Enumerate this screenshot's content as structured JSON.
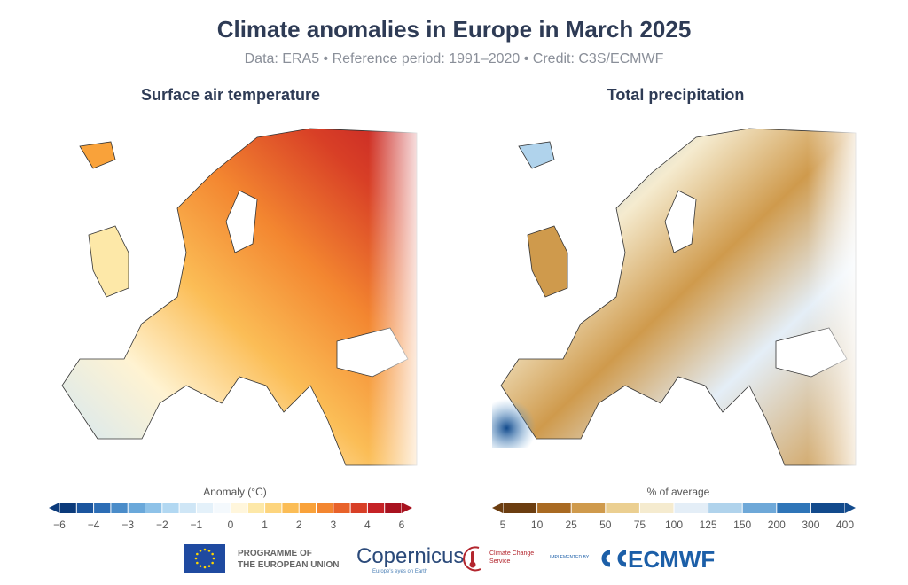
{
  "header": {
    "title": "Climate anomalies in Europe in March 2025",
    "subtitle": "Data: ERA5 • Reference period: 1991–2020 • Credit: C3S/ECMWF"
  },
  "panels": [
    {
      "title": "Surface air temperature",
      "legend_label": "Anomaly (°C)",
      "ticks": [
        "−6",
        "−4",
        "−3",
        "−2",
        "−1",
        "0",
        "1",
        "2",
        "3",
        "4",
        "6"
      ],
      "colors": [
        "#0b3a7a",
        "#1b559e",
        "#2c6db5",
        "#4a8cc9",
        "#6aa8da",
        "#8ec2e8",
        "#b2d8f2",
        "#cfe6f6",
        "#e4f1fa",
        "#f4f9fd",
        "#fff6dc",
        "#fde8a8",
        "#fdd57e",
        "#fbbd56",
        "#f9a23a",
        "#f38630",
        "#e8622a",
        "#d83f26",
        "#c52226",
        "#a8121f"
      ]
    },
    {
      "title": "Total precipitation",
      "legend_label": "% of average",
      "ticks": [
        "5",
        "10",
        "25",
        "50",
        "75",
        "100",
        "125",
        "150",
        "200",
        "300",
        "400"
      ],
      "colors": [
        "#6b3d10",
        "#a96a22",
        "#cf9a4c",
        "#ebcf91",
        "#f5ebcf",
        "#e4eef7",
        "#b0d3ec",
        "#6ea8d8",
        "#2f75b8",
        "#124a8c"
      ]
    }
  ],
  "logos": {
    "eu": "PROGRAMME OF THE EUROPEAN UNION",
    "eu_line1": "PROGRAMME OF",
    "eu_line2": "THE EUROPEAN UNION",
    "copernicus": "Copernicus",
    "copernicus_tag": "Europe's eyes on Earth",
    "c3s": "Climate Change Service",
    "implemented": "IMPLEMENTED BY",
    "ecmwf": "ECMWF"
  }
}
